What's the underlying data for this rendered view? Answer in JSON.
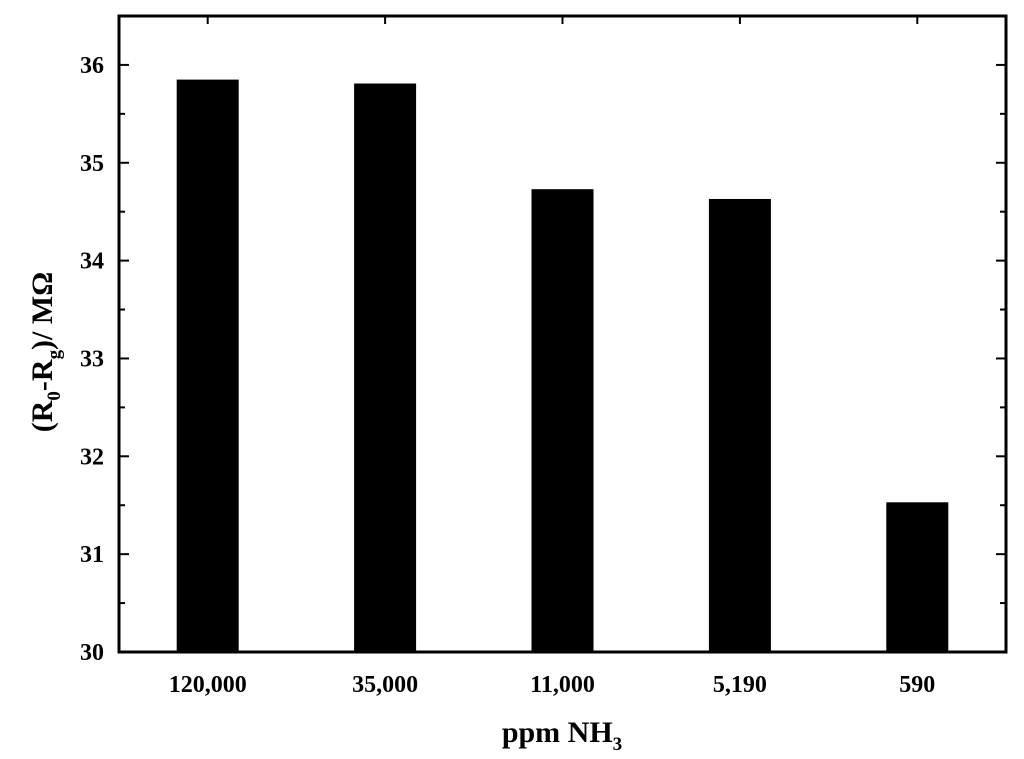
{
  "chart_data": {
    "type": "bar",
    "categories": [
      "120,000",
      "35,000",
      "11,000",
      "5,190",
      "590"
    ],
    "values": [
      35.85,
      35.81,
      34.73,
      34.63,
      31.53
    ],
    "ylim": [
      30,
      36.5
    ],
    "yticks": [
      30,
      31,
      32,
      33,
      34,
      35,
      36
    ],
    "ylabel": {
      "p1": "(R",
      "s1": "0",
      "p2": "-R",
      "s2": "g",
      "p3": ")/ MΩ"
    },
    "xlabel": {
      "p1": "ppm NH",
      "s1": "3"
    },
    "bar_color": "#000000",
    "grid": false,
    "legend": "none"
  }
}
